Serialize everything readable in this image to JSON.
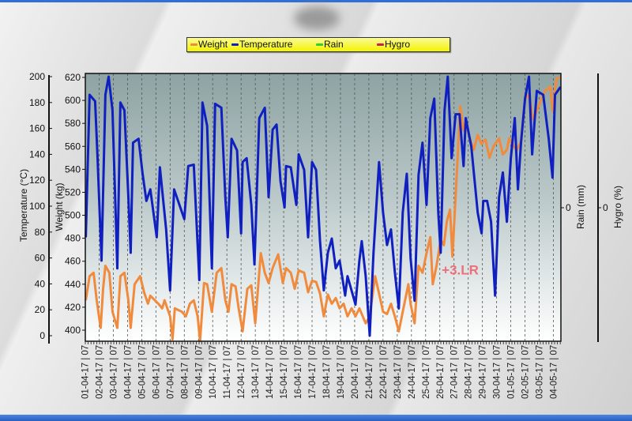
{
  "legend": [
    {
      "label": "Weight",
      "color": "#f08a3c"
    },
    {
      "label": "Temperature",
      "color": "#1020c0"
    },
    {
      "label": "Rain",
      "color": "#30d030"
    },
    {
      "label": "Hygro",
      "color": "#d02050"
    }
  ],
  "chart_data": {
    "type": "line",
    "title": "",
    "x_categories": [
      "01-04-17 | 07",
      "02-04-17 | 07",
      "03-04-17 | 07",
      "04-04-17 | 07",
      "05-04-17 | 07",
      "06-04-17 | 07",
      "07-04-17 | 07",
      "08-04-17 | 07",
      "09-04-17 | 07",
      "10-04-17 | 07",
      "11-04-17 | 07",
      "12-04-17 | 07",
      "13-04-17 | 07",
      "14-04-17 | 07",
      "15-04-17 | 07",
      "16-04-17 | 07",
      "17-04-17 | 07",
      "18-04-17 | 07",
      "19-04-17 | 07",
      "20-04-17 | 07",
      "21-04-17 | 07",
      "22-04-17 | 07",
      "23-04-17 | 07",
      "24-04-17 | 07",
      "25-04-17 | 07",
      "26-04-17 | 07",
      "27-04-17 | 07",
      "28-04-17 | 07",
      "29-04-17 | 07",
      "30-04-17 | 07",
      "01-05-17 | 07",
      "02-05-17 | 07",
      "03-05-17 | 07",
      "04-05-17 | 07"
    ],
    "grid": "vertical dashed per day",
    "legend_position": "top-center",
    "axes": {
      "temperature": {
        "label": "Temperature (°C)",
        "range": [
          0,
          200
        ],
        "ticks": [
          0,
          20,
          40,
          60,
          80,
          100,
          120,
          140,
          160,
          180,
          200
        ],
        "side": "left-outer"
      },
      "weight": {
        "label": "Weight (kg)",
        "range": [
          400,
          620
        ],
        "ticks": [
          400,
          420,
          440,
          460,
          480,
          500,
          520,
          540,
          560,
          580,
          600,
          620
        ],
        "side": "left-inner"
      },
      "rain": {
        "label": "Rain (mm)",
        "ticks": [
          0
        ],
        "side": "right-inner"
      },
      "hygro": {
        "label": "Hygro (%)",
        "ticks": [
          0
        ],
        "side": "right-outer"
      }
    },
    "annotation": {
      "text": "+3.LR",
      "x": 25.3,
      "weight": 452,
      "color": "#ee6f7c"
    },
    "series": [
      {
        "name": "Temperature",
        "axis": "temperature",
        "color": "#1020c0",
        "points": [
          [
            0.06,
            76
          ],
          [
            0.33,
            186
          ],
          [
            0.72,
            181
          ],
          [
            0.89,
            137
          ],
          [
            1.17,
            58
          ],
          [
            1.44,
            186
          ],
          [
            1.67,
            200
          ],
          [
            1.94,
            174
          ],
          [
            2.28,
            52
          ],
          [
            2.5,
            180
          ],
          [
            2.78,
            174
          ],
          [
            3.06,
            107
          ],
          [
            3.22,
            64
          ],
          [
            3.39,
            149
          ],
          [
            3.78,
            152
          ],
          [
            4.06,
            125
          ],
          [
            4.33,
            104
          ],
          [
            4.61,
            113
          ],
          [
            5.06,
            76
          ],
          [
            5.28,
            130
          ],
          [
            5.72,
            82
          ],
          [
            6.0,
            35
          ],
          [
            6.28,
            113
          ],
          [
            7.0,
            90
          ],
          [
            7.28,
            131
          ],
          [
            7.67,
            132
          ],
          [
            7.83,
            95
          ],
          [
            8.06,
            43
          ],
          [
            8.28,
            180
          ],
          [
            8.61,
            162
          ],
          [
            8.94,
            52
          ],
          [
            9.17,
            179
          ],
          [
            9.61,
            176
          ],
          [
            9.89,
            107
          ],
          [
            10.06,
            76
          ],
          [
            10.33,
            152
          ],
          [
            10.72,
            143
          ],
          [
            11.0,
            79
          ],
          [
            11.11,
            134
          ],
          [
            11.39,
            137
          ],
          [
            11.72,
            101
          ],
          [
            11.94,
            55
          ],
          [
            12.28,
            168
          ],
          [
            12.67,
            176
          ],
          [
            12.94,
            107
          ],
          [
            13.22,
            159
          ],
          [
            13.5,
            163
          ],
          [
            13.78,
            119
          ],
          [
            14.06,
            99
          ],
          [
            14.17,
            131
          ],
          [
            14.5,
            130
          ],
          [
            14.89,
            101
          ],
          [
            15.06,
            140
          ],
          [
            15.44,
            128
          ],
          [
            15.72,
            76
          ],
          [
            16.0,
            134
          ],
          [
            16.28,
            128
          ],
          [
            16.56,
            73
          ],
          [
            16.83,
            35
          ],
          [
            17.11,
            64
          ],
          [
            17.39,
            75
          ],
          [
            17.67,
            52
          ],
          [
            17.94,
            58
          ],
          [
            18.33,
            31
          ],
          [
            18.5,
            46
          ],
          [
            19.06,
            24
          ],
          [
            19.33,
            58
          ],
          [
            19.5,
            73
          ],
          [
            19.78,
            46
          ],
          [
            20.06,
            0
          ],
          [
            20.33,
            64
          ],
          [
            20.72,
            134
          ],
          [
            21.0,
            95
          ],
          [
            21.28,
            70
          ],
          [
            21.56,
            82
          ],
          [
            21.83,
            49
          ],
          [
            22.11,
            21
          ],
          [
            22.39,
            95
          ],
          [
            22.67,
            125
          ],
          [
            22.94,
            60
          ],
          [
            23.22,
            27
          ],
          [
            23.5,
            124
          ],
          [
            23.78,
            149
          ],
          [
            24.06,
            101
          ],
          [
            24.33,
            168
          ],
          [
            24.61,
            183
          ],
          [
            24.89,
            95
          ],
          [
            25.06,
            64
          ],
          [
            25.33,
            174
          ],
          [
            25.56,
            200
          ],
          [
            25.83,
            137
          ],
          [
            26.11,
            171
          ],
          [
            26.39,
            171
          ],
          [
            26.67,
            131
          ],
          [
            26.83,
            168
          ],
          [
            27.22,
            146
          ],
          [
            27.67,
            95
          ],
          [
            27.94,
            79
          ],
          [
            28.06,
            104
          ],
          [
            28.33,
            104
          ],
          [
            28.61,
            88
          ],
          [
            28.89,
            31
          ],
          [
            29.17,
            107
          ],
          [
            29.44,
            126
          ],
          [
            29.72,
            88
          ],
          [
            30.0,
            137
          ],
          [
            30.28,
            168
          ],
          [
            30.5,
            113
          ],
          [
            30.72,
            149
          ],
          [
            31.0,
            183
          ],
          [
            31.28,
            200
          ],
          [
            31.5,
            140
          ],
          [
            31.83,
            189
          ],
          [
            32.28,
            186
          ],
          [
            32.67,
            152
          ],
          [
            32.94,
            122
          ],
          [
            33.11,
            186
          ],
          [
            33.5,
            192
          ]
        ]
      },
      {
        "name": "Weight",
        "axis": "weight",
        "color": "#f08a3c",
        "points": [
          [
            0.06,
            426
          ],
          [
            0.33,
            447
          ],
          [
            0.61,
            450
          ],
          [
            0.83,
            426
          ],
          [
            1.11,
            402
          ],
          [
            1.28,
            436
          ],
          [
            1.44,
            456
          ],
          [
            1.72,
            450
          ],
          [
            1.94,
            416
          ],
          [
            2.28,
            402
          ],
          [
            2.5,
            447
          ],
          [
            2.78,
            450
          ],
          [
            3.06,
            426
          ],
          [
            3.22,
            402
          ],
          [
            3.5,
            440
          ],
          [
            3.89,
            447
          ],
          [
            4.17,
            433
          ],
          [
            4.44,
            423
          ],
          [
            4.61,
            430
          ],
          [
            5.17,
            423
          ],
          [
            5.44,
            419
          ],
          [
            5.61,
            426
          ],
          [
            6.0,
            412
          ],
          [
            6.17,
            392
          ],
          [
            6.33,
            419
          ],
          [
            6.83,
            416
          ],
          [
            7.11,
            412
          ],
          [
            7.39,
            423
          ],
          [
            7.67,
            426
          ],
          [
            7.94,
            412
          ],
          [
            8.11,
            390
          ],
          [
            8.39,
            441
          ],
          [
            8.61,
            440
          ],
          [
            8.94,
            416
          ],
          [
            9.28,
            450
          ],
          [
            9.61,
            454
          ],
          [
            9.89,
            426
          ],
          [
            10.11,
            416
          ],
          [
            10.33,
            440
          ],
          [
            10.61,
            438
          ],
          [
            10.83,
            419
          ],
          [
            11.11,
            399
          ],
          [
            11.44,
            436
          ],
          [
            11.72,
            439
          ],
          [
            12.0,
            406
          ],
          [
            12.39,
            467
          ],
          [
            12.67,
            450
          ],
          [
            12.94,
            441
          ],
          [
            13.22,
            454
          ],
          [
            13.61,
            466
          ],
          [
            13.94,
            441
          ],
          [
            14.17,
            454
          ],
          [
            14.5,
            450
          ],
          [
            14.78,
            436
          ],
          [
            15.06,
            452
          ],
          [
            15.44,
            450
          ],
          [
            15.72,
            433
          ],
          [
            16.0,
            443
          ],
          [
            16.28,
            442
          ],
          [
            16.56,
            432
          ],
          [
            16.83,
            412
          ],
          [
            17.11,
            431
          ],
          [
            17.39,
            423
          ],
          [
            17.67,
            428
          ],
          [
            17.94,
            419
          ],
          [
            18.22,
            423
          ],
          [
            18.5,
            412
          ],
          [
            18.78,
            419
          ],
          [
            19.06,
            412
          ],
          [
            19.33,
            419
          ],
          [
            19.78,
            406
          ],
          [
            20.06,
            412
          ],
          [
            20.44,
            447
          ],
          [
            20.72,
            432
          ],
          [
            21.0,
            416
          ],
          [
            21.28,
            414
          ],
          [
            21.56,
            423
          ],
          [
            21.83,
            412
          ],
          [
            22.11,
            399
          ],
          [
            22.39,
            416
          ],
          [
            22.78,
            440
          ],
          [
            22.94,
            423
          ],
          [
            23.22,
            406
          ],
          [
            23.5,
            456
          ],
          [
            23.78,
            450
          ],
          [
            24.06,
            467
          ],
          [
            24.33,
            481
          ],
          [
            24.5,
            440
          ],
          [
            24.78,
            457
          ],
          [
            25.06,
            479
          ],
          [
            25.28,
            474
          ],
          [
            25.5,
            495
          ],
          [
            25.72,
            505
          ],
          [
            25.89,
            464
          ],
          [
            26.11,
            516
          ],
          [
            26.44,
            595
          ],
          [
            26.67,
            574
          ],
          [
            26.83,
            581
          ],
          [
            27.11,
            567
          ],
          [
            27.39,
            557
          ],
          [
            27.67,
            570
          ],
          [
            27.94,
            562
          ],
          [
            28.22,
            566
          ],
          [
            28.5,
            550
          ],
          [
            28.78,
            560
          ],
          [
            29.17,
            567
          ],
          [
            29.44,
            553
          ],
          [
            29.72,
            557
          ],
          [
            29.89,
            567
          ],
          [
            30.17,
            560
          ],
          [
            30.44,
            557
          ],
          [
            30.72,
            564
          ],
          [
            31.0,
            601
          ],
          [
            31.28,
            605
          ],
          [
            31.56,
            584
          ],
          [
            31.83,
            591
          ],
          [
            32.39,
            608
          ],
          [
            32.78,
            612
          ],
          [
            32.94,
            591
          ],
          [
            33.22,
            619
          ],
          [
            33.5,
            620
          ]
        ]
      }
    ]
  }
}
